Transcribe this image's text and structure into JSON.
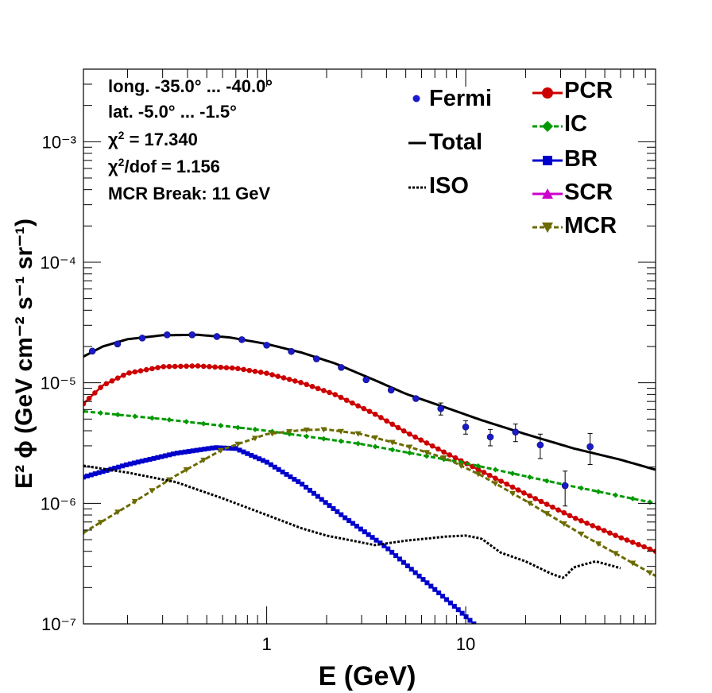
{
  "chart_data": {
    "type": "line",
    "x_scale": "log",
    "y_scale": "log",
    "xlim": [
      0.12,
      90
    ],
    "ylim": [
      1e-07,
      0.004
    ],
    "xlabel": "E (GeV)",
    "ylabel": "E² ϕ (GeV cm⁻² s⁻¹ sr⁻¹)",
    "x_ticks": [
      "1",
      "10"
    ],
    "y_ticks": [
      "10⁻⁷",
      "10⁻⁶",
      "10⁻⁵",
      "10⁻⁴",
      "10⁻³"
    ],
    "info": {
      "line1": "long. -35.0° ... -40.0°",
      "line2": "lat. -5.0° ... -1.5°",
      "chi2": "17.340",
      "chi2dof": "1.156",
      "chi2_prefix": "χ",
      "chi2_sup": "2",
      "chi2_suffix": " = ",
      "chi2dof_suffix": "/dof = ",
      "line5": "MCR Break: 11 GeV"
    },
    "legend": {
      "fermi": "Fermi",
      "total": "Total",
      "iso": "ISO",
      "pcr": "PCR",
      "ic": "IC",
      "br": "BR",
      "scr": "SCR",
      "mcr": "MCR"
    },
    "colors": {
      "fermi": "#1a1acc",
      "total": "#000000",
      "iso": "#000000",
      "pcr": "#cc0000",
      "ic": "#009900",
      "br": "#0000cc",
      "scr": "#cc00cc",
      "mcr": "#6b6b00"
    },
    "fermi_points": [
      {
        "x": 0.133,
        "y": 1.83e-05
      },
      {
        "x": 0.178,
        "y": 2.1e-05
      },
      {
        "x": 0.237,
        "y": 2.35e-05
      },
      {
        "x": 0.316,
        "y": 2.5e-05
      },
      {
        "x": 0.422,
        "y": 2.5e-05
      },
      {
        "x": 0.562,
        "y": 2.42e-05
      },
      {
        "x": 0.75,
        "y": 2.28e-05
      },
      {
        "x": 1.0,
        "y": 2.05e-05
      },
      {
        "x": 1.33,
        "y": 1.82e-05
      },
      {
        "x": 1.78,
        "y": 1.58e-05
      },
      {
        "x": 2.37,
        "y": 1.34e-05
      },
      {
        "x": 3.16,
        "y": 1.06e-05
      },
      {
        "x": 4.22,
        "y": 8.7e-06
      },
      {
        "x": 5.62,
        "y": 7.4e-06
      },
      {
        "x": 7.5,
        "y": 6.1e-06,
        "err": 7e-07
      },
      {
        "x": 10.0,
        "y": 4.3e-06,
        "err": 5.5e-07
      },
      {
        "x": 13.3,
        "y": 3.55e-06,
        "err": 5.5e-07
      },
      {
        "x": 17.8,
        "y": 3.9e-06,
        "err": 6.5e-07
      },
      {
        "x": 23.7,
        "y": 3.05e-06,
        "err": 7e-07
      },
      {
        "x": 31.6,
        "y": 1.4e-06,
        "err": 4.5e-07
      },
      {
        "x": 42.2,
        "y": 2.95e-06,
        "err": 8.5e-07
      }
    ],
    "series": [
      {
        "name": "Total",
        "key": "total",
        "style": "solid",
        "x": [
          0.12,
          0.15,
          0.2,
          0.3,
          0.45,
          0.65,
          1.0,
          1.5,
          2.2,
          3.5,
          5.0,
          8.0,
          12.0,
          20.0,
          35.0,
          60.0,
          90.0
        ],
        "y": [
          1.65e-05,
          2e-05,
          2.3e-05,
          2.48e-05,
          2.5e-05,
          2.38e-05,
          2.1e-05,
          1.78e-05,
          1.45e-05,
          1.05e-05,
          8.1e-06,
          6.2e-06,
          4.9e-06,
          3.75e-06,
          2.85e-06,
          2.3e-06,
          1.9e-06
        ]
      },
      {
        "name": "PCR",
        "key": "pcr",
        "style": "markers-circle",
        "x": [
          0.12,
          0.15,
          0.2,
          0.3,
          0.45,
          0.7,
          1.0,
          1.5,
          2.2,
          3.5,
          5.0,
          8.0,
          12.0,
          20.0,
          35.0,
          60.0,
          90.0
        ],
        "y": [
          6.7e-06,
          9.5e-06,
          1.2e-05,
          1.36e-05,
          1.38e-05,
          1.32e-05,
          1.2e-05,
          1e-05,
          8e-06,
          5.5e-06,
          3.9e-06,
          2.6e-06,
          1.85e-06,
          1.2e-06,
          7.6e-07,
          5.2e-07,
          4e-07
        ]
      },
      {
        "name": "IC",
        "key": "ic",
        "style": "dashed-diamond",
        "x": [
          0.12,
          0.3,
          1.0,
          3.0,
          10.0,
          30.0,
          90.0
        ],
        "y": [
          5.8e-06,
          5e-06,
          4e-06,
          3.1e-06,
          2.15e-06,
          1.45e-06,
          1e-06
        ]
      },
      {
        "name": "BR",
        "key": "br",
        "style": "markers-square",
        "x": [
          0.12,
          0.2,
          0.35,
          0.55,
          0.7,
          1.0,
          1.5,
          2.5,
          4.0,
          6.0,
          9.0,
          11.0
        ],
        "y": [
          1.65e-06,
          2.1e-06,
          2.6e-06,
          2.9e-06,
          2.85e-06,
          2.2e-06,
          1.45e-06,
          7.5e-07,
          4.3e-07,
          2.4e-07,
          1.35e-07,
          1e-07
        ]
      },
      {
        "name": "MCR",
        "key": "mcr",
        "style": "dashed-triangle",
        "x": [
          0.12,
          0.2,
          0.35,
          0.6,
          1.0,
          1.5,
          2.0,
          3.0,
          5.0,
          8.0,
          12.0,
          20.0,
          40.0,
          90.0
        ],
        "y": [
          5.7e-07,
          9.5e-07,
          1.7e-06,
          2.8e-06,
          3.75e-06,
          4.05e-06,
          4.1e-06,
          3.75e-06,
          3e-06,
          2.35e-06,
          1.7e-06,
          1.05e-06,
          5.3e-07,
          2.5e-07
        ]
      },
      {
        "name": "ISO",
        "key": "iso",
        "style": "dotted",
        "x": [
          0.12,
          0.2,
          0.35,
          0.6,
          1.0,
          1.5,
          2.0,
          2.7,
          3.5,
          5.0,
          8.0,
          10.0,
          12.0,
          15.0,
          20.0,
          27.0,
          31.0,
          35.0,
          45.0,
          60.0
        ],
        "y": [
          2.05e-06,
          1.8e-06,
          1.5e-06,
          1.1e-06,
          8e-07,
          6.2e-07,
          5.4e-07,
          4.9e-07,
          4.5e-07,
          4.9e-07,
          5.3e-07,
          5.4e-07,
          5.1e-07,
          3.9e-07,
          3.3e-07,
          2.6e-07,
          2.4e-07,
          2.95e-07,
          3.3e-07,
          2.9e-07
        ]
      }
    ]
  }
}
